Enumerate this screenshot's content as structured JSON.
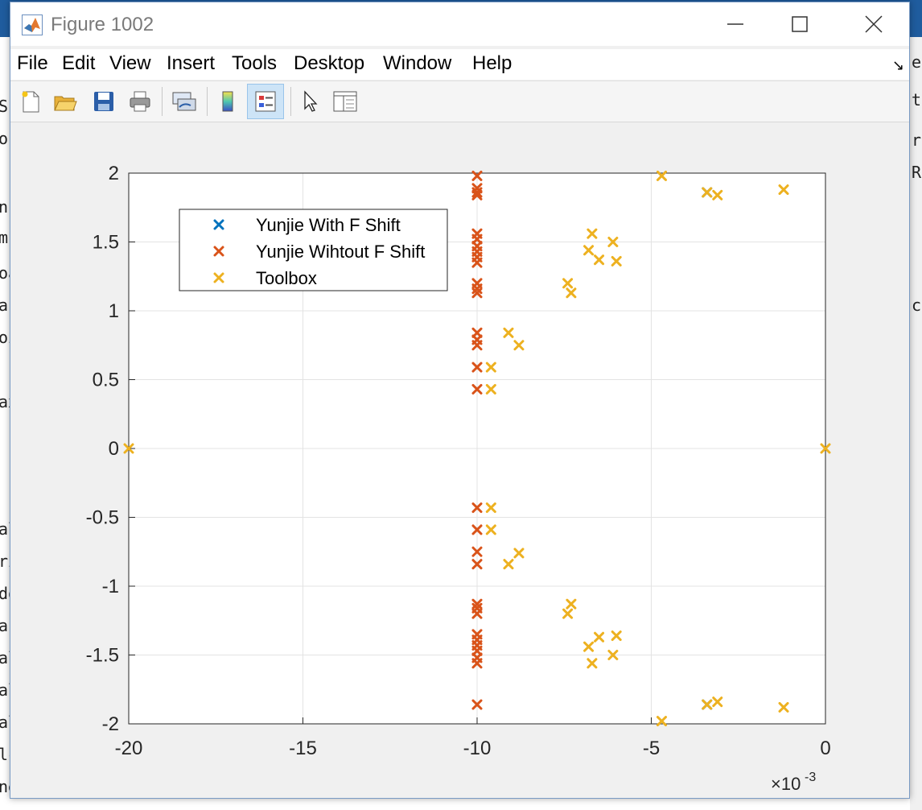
{
  "window": {
    "title": "Figure 1002"
  },
  "menu": [
    "File",
    "Edit",
    "View",
    "Insert",
    "Tools",
    "Desktop",
    "Window",
    "Help"
  ],
  "toolbar": [
    {
      "name": "new-figure-button",
      "icon": "new-file-icon"
    },
    {
      "name": "open-file-button",
      "icon": "folder-open-icon"
    },
    {
      "name": "save-figure-button",
      "icon": "save-icon"
    },
    {
      "name": "print-figure-button",
      "icon": "printer-icon"
    },
    {
      "name": "link-plot-button",
      "icon": "link-plot-icon"
    },
    {
      "name": "insert-colorbar-button",
      "icon": "colorbar-icon"
    },
    {
      "name": "insert-legend-button",
      "icon": "legend-icon"
    },
    {
      "name": "edit-plot-button",
      "icon": "pointer-icon"
    },
    {
      "name": "property-inspector-button",
      "icon": "property-inspector-icon"
    }
  ],
  "background_fragments": {
    "left": [
      "S",
      "or",
      "n",
      "m",
      "oa",
      "ar",
      "oi",
      "ax",
      "al",
      "ri",
      "do",
      "ar",
      "al",
      "al",
      "al",
      "lc",
      "ne"
    ],
    "right": [
      "ef",
      "t",
      "ra",
      "R(",
      "ca"
    ]
  },
  "chart_data": {
    "type": "scatter",
    "title": "",
    "xlabel": "",
    "ylabel": "",
    "xlim": [
      -0.02,
      0
    ],
    "ylim": [
      -2,
      2
    ],
    "x_ticks": [
      -0.02,
      -0.015,
      -0.01,
      -0.005,
      0
    ],
    "x_tick_labels": [
      "-20",
      "-15",
      "-10",
      "-5",
      "0"
    ],
    "x_exponent_label": "×10^-3",
    "y_ticks": [
      -2,
      -1.5,
      -1,
      -0.5,
      0,
      0.5,
      1,
      1.5,
      2
    ],
    "y_tick_labels": [
      "-2",
      "-1.5",
      "-1",
      "-0.5",
      "0",
      "0.5",
      "1",
      "1.5",
      "2"
    ],
    "grid": true,
    "legend_position": "top-left",
    "marker": "x",
    "series": [
      {
        "name": "Yunjie With F Shift",
        "color": "#0072bd",
        "x": [
          -0.0034,
          -0.0034
        ],
        "y": [
          1.86,
          -1.86
        ]
      },
      {
        "name": "Yunjie Wihtout F Shift",
        "color": "#d95319",
        "x": [
          -0.01,
          -0.01,
          -0.01,
          -0.01,
          -0.01,
          -0.01,
          -0.01,
          -0.01,
          -0.01,
          -0.01,
          -0.01,
          -0.01,
          -0.01,
          -0.01,
          -0.01,
          -0.01,
          -0.01,
          -0.01,
          -0.01,
          -0.01,
          -0.01,
          -0.01,
          -0.01,
          -0.01,
          -0.01,
          -0.01,
          -0.01,
          -0.01,
          -0.01,
          -0.01,
          -0.01,
          -0.01
        ],
        "y": [
          1.98,
          1.89,
          1.86,
          1.84,
          1.56,
          1.52,
          1.47,
          1.43,
          1.39,
          1.35,
          1.2,
          1.16,
          1.13,
          0.84,
          0.79,
          0.75,
          0.59,
          0.43,
          -0.43,
          -0.59,
          -0.75,
          -0.84,
          -1.13,
          -1.16,
          -1.2,
          -1.35,
          -1.39,
          -1.43,
          -1.47,
          -1.52,
          -1.56,
          -1.86
        ]
      },
      {
        "name": "Toolbox",
        "color": "#edb120",
        "x": [
          -0.0047,
          -0.0034,
          -0.0031,
          -0.0012,
          -0.0067,
          -0.0061,
          -0.0068,
          -0.0065,
          -0.006,
          -0.0074,
          -0.0073,
          -0.0091,
          -0.0088,
          -0.0096,
          -0.0096,
          -0.02,
          0,
          -0.0096,
          -0.0096,
          -0.0088,
          -0.0091,
          -0.0073,
          -0.0074,
          -0.0065,
          -0.006,
          -0.0068,
          -0.0061,
          -0.0067,
          -0.0034,
          -0.0031,
          -0.0012,
          -0.0047
        ],
        "y": [
          1.98,
          1.86,
          1.84,
          1.88,
          1.56,
          1.5,
          1.44,
          1.37,
          1.36,
          1.2,
          1.13,
          0.84,
          0.75,
          0.59,
          0.43,
          0,
          0,
          -0.43,
          -0.59,
          -0.76,
          -0.84,
          -1.13,
          -1.2,
          -1.37,
          -1.36,
          -1.44,
          -1.5,
          -1.56,
          -1.86,
          -1.84,
          -1.88,
          -1.98
        ]
      }
    ]
  }
}
